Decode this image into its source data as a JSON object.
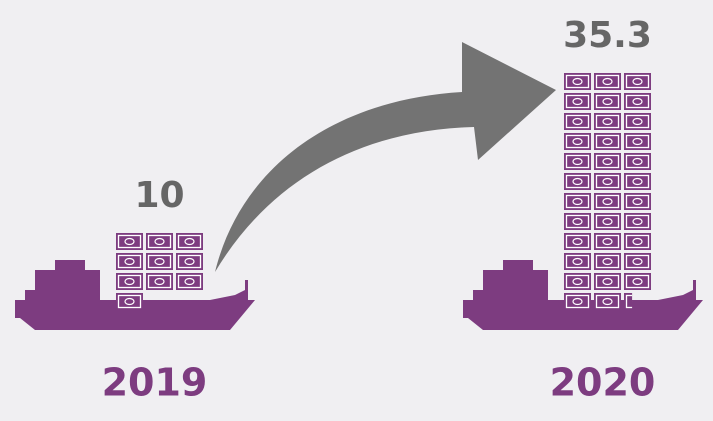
{
  "chart_data": {
    "type": "pictogram",
    "categories": [
      "2019",
      "2020"
    ],
    "values": [
      10,
      35.3
    ],
    "color": "#7d3c80",
    "label_color": "#666666"
  }
}
